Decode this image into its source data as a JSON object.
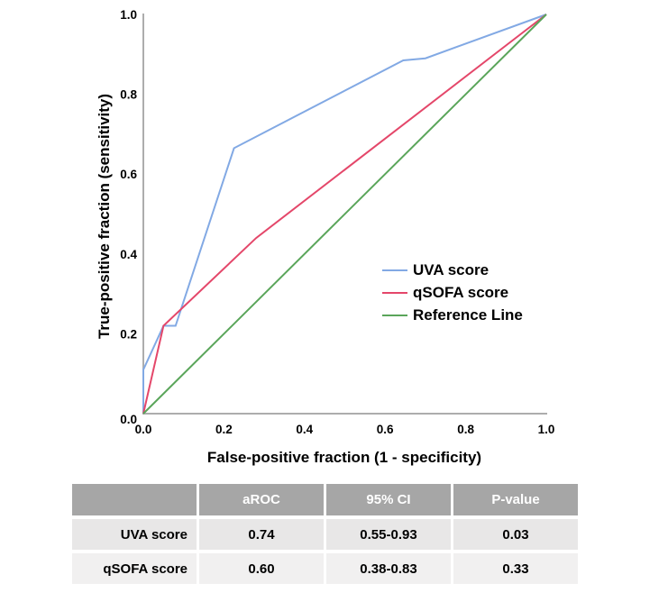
{
  "chart_data": {
    "type": "line",
    "title": "",
    "xlabel": "False-positive fraction (1 - specificity)",
    "ylabel": "True-positive fraction (sensitivity)",
    "xlim": [
      0,
      1
    ],
    "ylim": [
      0,
      1
    ],
    "x_tick_labels": [
      "0.0",
      "0.2",
      "0.4",
      "0.6",
      "0.8",
      "1.0"
    ],
    "y_tick_labels": [
      "0.0",
      "0.2",
      "0.4",
      "0.6",
      "0.8",
      "1.0"
    ],
    "grid": false,
    "legend_position": "center-right",
    "axis_color": "#adadad",
    "series": [
      {
        "name": "UVA score",
        "color": "#82a9e4",
        "points": [
          [
            0,
            0
          ],
          [
            0,
            0.11
          ],
          [
            0.05,
            0.22
          ],
          [
            0.08,
            0.22
          ],
          [
            0.225,
            0.665
          ],
          [
            0.645,
            0.885
          ],
          [
            0.7,
            0.89
          ],
          [
            1,
            1
          ]
        ]
      },
      {
        "name": "qSOFA score",
        "color": "#e4476a",
        "points": [
          [
            0,
            0
          ],
          [
            0.05,
            0.22
          ],
          [
            0.28,
            0.44
          ],
          [
            1,
            1
          ]
        ]
      },
      {
        "name": "Reference Line",
        "color": "#5aa55a",
        "points": [
          [
            0,
            0
          ],
          [
            1,
            1
          ]
        ]
      }
    ]
  },
  "table": {
    "headers": [
      "",
      "aROC",
      "95% CI",
      "P-value"
    ],
    "rows": [
      {
        "label": "UVA score",
        "values": [
          "0.74",
          "0.55-0.93",
          "0.03"
        ]
      },
      {
        "label": "qSOFA score",
        "values": [
          "0.60",
          "0.38-0.83",
          "0.33"
        ]
      }
    ],
    "colors": {
      "header_bg": "#a6a6a6",
      "header_text": "#ffffff",
      "row1_bg": "#e8e7e7",
      "row2_bg": "#f1f0f0"
    }
  }
}
